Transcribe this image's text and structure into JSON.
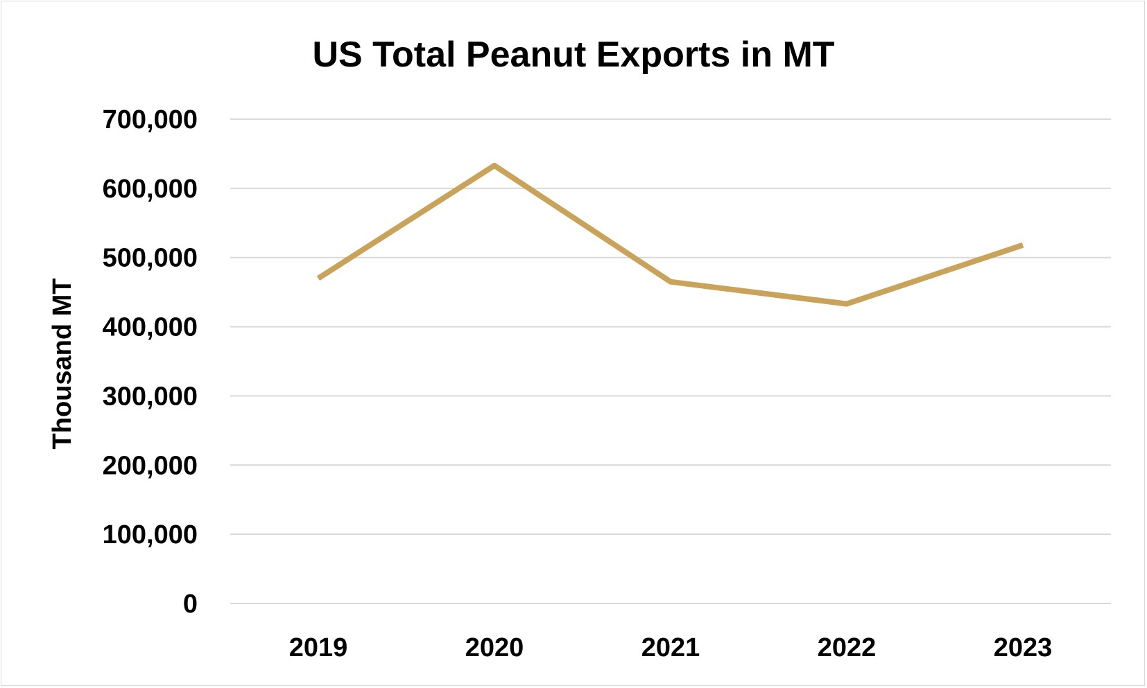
{
  "chart_data": {
    "type": "line",
    "title": "US Total Peanut Exports in MT",
    "xlabel": "",
    "ylabel": "Thousand MT",
    "categories": [
      "2019",
      "2020",
      "2021",
      "2022",
      "2023"
    ],
    "series": [
      {
        "name": "US Total Peanut Exports",
        "values": [
          470000,
          633000,
          465000,
          433000,
          518000
        ],
        "color": "#C9A35A"
      }
    ],
    "ylim": [
      0,
      700000
    ],
    "yticks": [
      0,
      100000,
      200000,
      300000,
      400000,
      500000,
      600000,
      700000
    ],
    "ytick_labels": [
      "0",
      "100,000",
      "200,000",
      "300,000",
      "400,000",
      "500,000",
      "600,000",
      "700,000"
    ],
    "grid": true,
    "legend": "none",
    "gridline_color": "#D9D9D9"
  }
}
